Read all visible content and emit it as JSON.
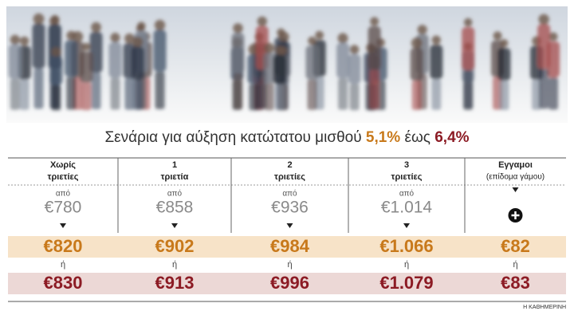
{
  "title": {
    "text": "Σενάρια για αύξηση κατώτατου μισθού",
    "low": "5,1%",
    "joiner": "έως",
    "high": "6,4%"
  },
  "table": {
    "columns": [
      {
        "header": [
          "Χωρίς",
          "τριετίες"
        ],
        "from_label": "από",
        "from": "€780",
        "scenario_1": "€820",
        "or": "ή",
        "scenario_2": "€830"
      },
      {
        "header": [
          "1",
          "τριετία"
        ],
        "from_label": "από",
        "from": "€858",
        "scenario_1": "€902",
        "or": "ή",
        "scenario_2": "€913"
      },
      {
        "header": [
          "2",
          "τριετίες"
        ],
        "from_label": "από",
        "from": "€936",
        "scenario_1": "€984",
        "or": "ή",
        "scenario_2": "€996"
      },
      {
        "header": [
          "3",
          "τριετίες"
        ],
        "from_label": "από",
        "from": "€1.014",
        "scenario_1": "€1.066",
        "or": "ή",
        "scenario_2": "€1.079"
      },
      {
        "header": [
          "Εγγαμοι",
          "(επίδομα γάμου)"
        ],
        "scenario_1": "€82",
        "or": "ή",
        "scenario_2": "€83"
      }
    ]
  },
  "source": "Η ΚΑΘΗΜΕΡΙΝΗ"
}
